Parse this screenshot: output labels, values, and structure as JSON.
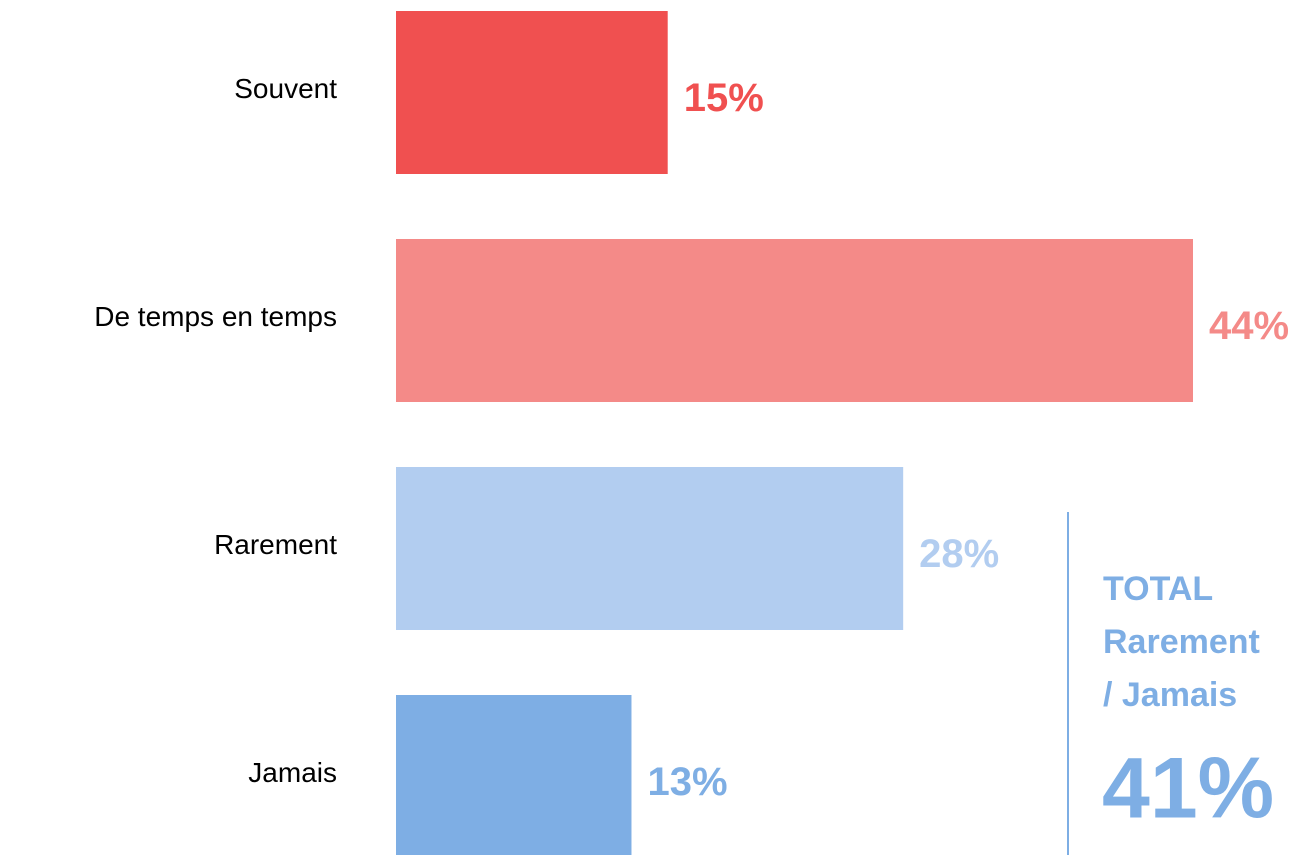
{
  "chart_data": {
    "type": "hbar",
    "categories": [
      "Souvent",
      "De temps en temps",
      "Rarement",
      "Jamais"
    ],
    "values": [
      15,
      44,
      28,
      13
    ],
    "value_labels": [
      "15%",
      "44%",
      "28%",
      "13%"
    ],
    "colors": [
      "#f05050",
      "#f48a88",
      "#b2cdf0",
      "#7eaee4"
    ],
    "annotation": {
      "lines": [
        "TOTAL",
        "Rarement",
        "/ Jamais"
      ],
      "value": 41,
      "value_label": "41%",
      "color": "#7eaee4"
    }
  }
}
